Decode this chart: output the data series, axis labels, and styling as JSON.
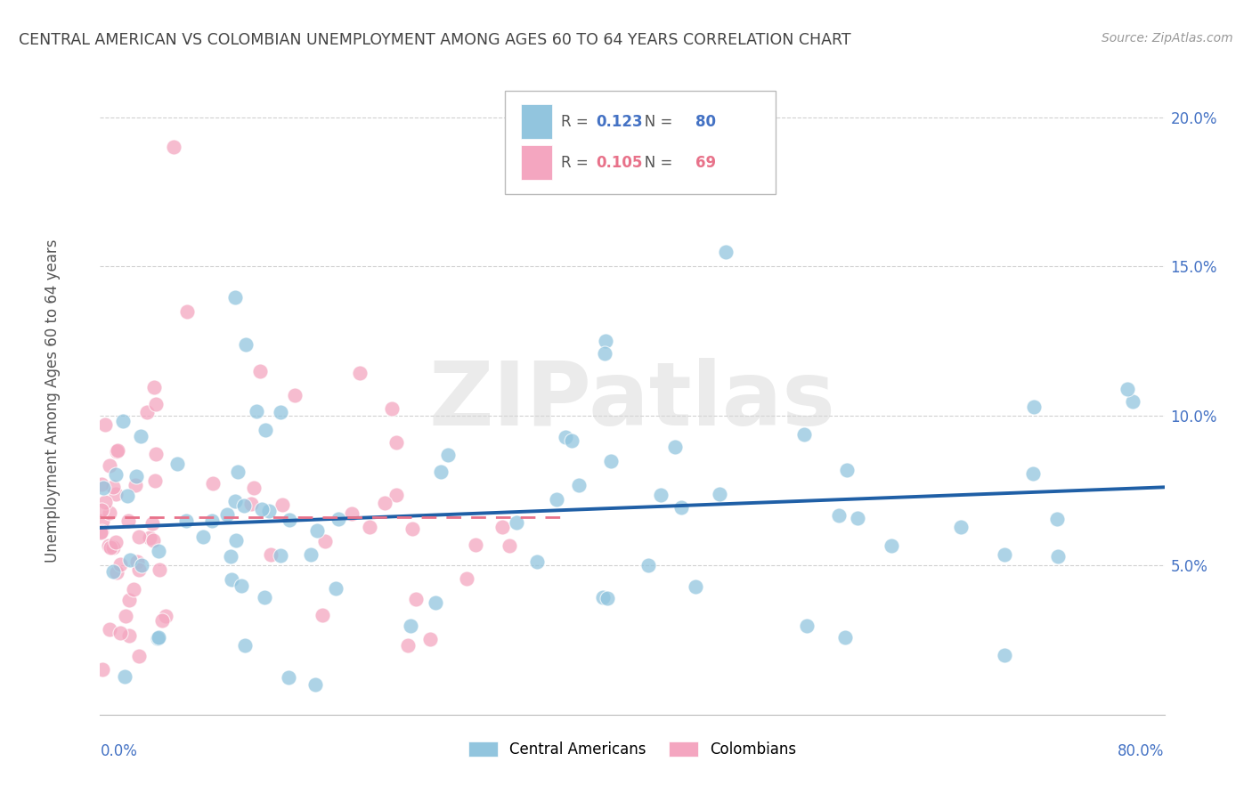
{
  "title": "CENTRAL AMERICAN VS COLOMBIAN UNEMPLOYMENT AMONG AGES 60 TO 64 YEARS CORRELATION CHART",
  "source": "Source: ZipAtlas.com",
  "ylabel": "Unemployment Among Ages 60 to 64 years",
  "xmin": 0.0,
  "xmax": 0.8,
  "ymin": 0.0,
  "ymax": 0.21,
  "yticks": [
    0.05,
    0.1,
    0.15,
    0.2
  ],
  "ytick_labels": [
    "5.0%",
    "10.0%",
    "15.0%",
    "20.0%"
  ],
  "blue_R": 0.123,
  "blue_N": 80,
  "pink_R": 0.105,
  "pink_N": 69,
  "blue_color": "#92c5de",
  "pink_color": "#f4a6c0",
  "blue_line_color": "#1f5fa6",
  "pink_line_color": "#e8728a",
  "watermark_text": "ZIPatlas",
  "watermark_color": "#d8d8d8"
}
